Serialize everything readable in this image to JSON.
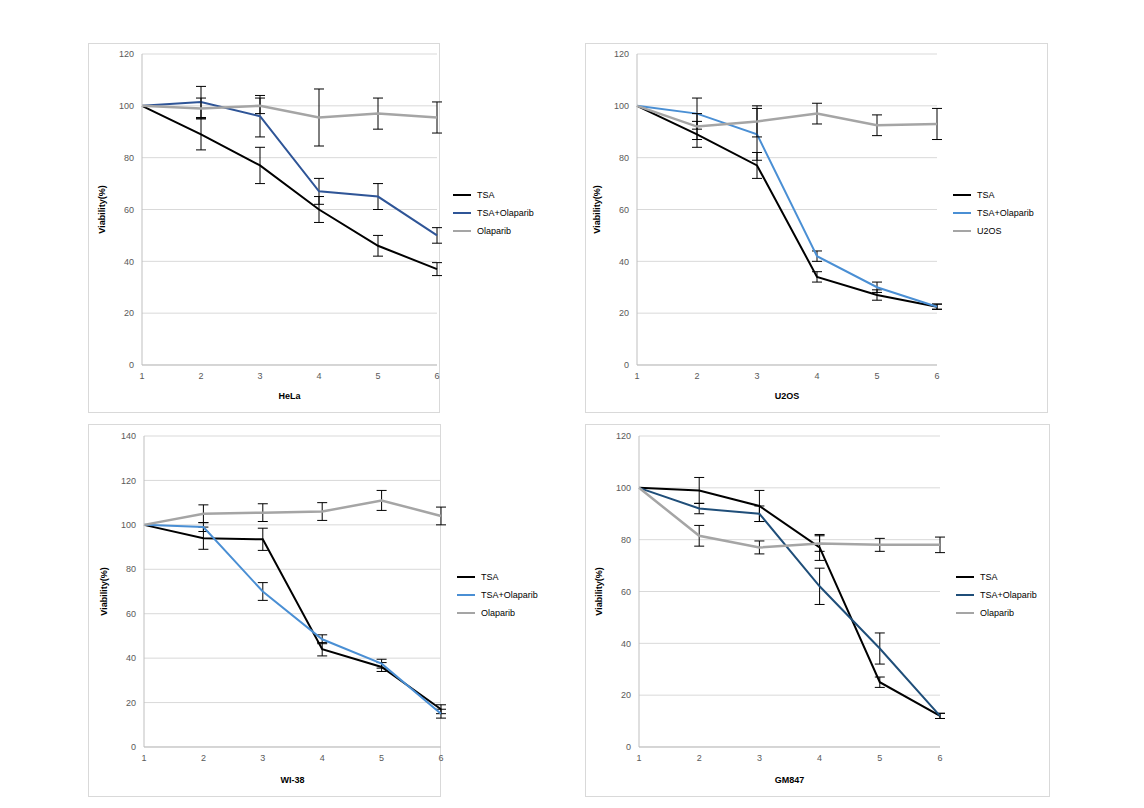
{
  "chart_data": [
    {
      "type": "line",
      "x_label": "HeLa",
      "y_label": "Viability(%)",
      "categories": [
        "1",
        "2",
        "3",
        "4",
        "5",
        "6"
      ],
      "ylim": [
        0,
        120
      ],
      "yticks": [
        0,
        20,
        40,
        60,
        80,
        100,
        120
      ],
      "grid": true,
      "legend": "right",
      "series": [
        {
          "name": "TSA",
          "color": "#000000",
          "values": [
            100,
            89,
            77,
            60,
            46,
            37
          ],
          "errors": [
            0,
            6,
            7,
            5,
            4,
            2.5
          ]
        },
        {
          "name": "TSA+Olaparib",
          "color": "#2f5597",
          "values": [
            100,
            101.5,
            96,
            67,
            65,
            50
          ],
          "errors": [
            0,
            6,
            8,
            5,
            5,
            3
          ]
        },
        {
          "name": "Olaparib",
          "color": "#a5a5a5",
          "values": [
            100,
            99,
            100,
            95.5,
            97,
            95.5
          ],
          "errors": [
            0,
            4,
            3,
            11,
            6,
            6
          ]
        }
      ]
    },
    {
      "type": "line",
      "x_label": "U2OS",
      "y_label": "Viability(%)",
      "categories": [
        "1",
        "2",
        "3",
        "4",
        "5",
        "6"
      ],
      "ylim": [
        0,
        120
      ],
      "yticks": [
        0,
        20,
        40,
        60,
        80,
        100,
        120
      ],
      "grid": true,
      "legend": "right",
      "series": [
        {
          "name": "TSA",
          "color": "#000000",
          "values": [
            100,
            89,
            77,
            34,
            27,
            22.5
          ],
          "errors": [
            0,
            5,
            5,
            2,
            2,
            1
          ]
        },
        {
          "name": "TSA+Olaparib",
          "color": "#4a8fd4",
          "values": [
            100,
            97,
            89,
            42,
            30,
            22.5
          ],
          "errors": [
            0,
            6,
            10,
            2,
            2,
            1
          ]
        },
        {
          "name": "U2OS",
          "color": "#a5a5a5",
          "values": [
            100,
            92,
            94,
            97,
            92.5,
            93
          ],
          "errors": [
            0,
            5,
            6,
            4,
            4,
            6
          ]
        }
      ]
    },
    {
      "type": "line",
      "x_label": "WI-38",
      "y_label": "Viability(%)",
      "categories": [
        "1",
        "2",
        "3",
        "4",
        "5",
        "6"
      ],
      "ylim": [
        0,
        140
      ],
      "yticks": [
        0,
        20,
        40,
        60,
        80,
        100,
        120,
        140
      ],
      "grid": true,
      "legend": "right",
      "series": [
        {
          "name": "TSA",
          "color": "#000000",
          "values": [
            100,
            94,
            93.5,
            44,
            36,
            17
          ],
          "errors": [
            0,
            5,
            5,
            3,
            2,
            2
          ]
        },
        {
          "name": "TSA+Olaparib",
          "color": "#4a8fd4",
          "values": [
            100,
            99,
            70,
            48.5,
            37.5,
            15
          ],
          "errors": [
            0,
            2,
            4,
            2,
            2,
            2
          ]
        },
        {
          "name": "Olaparib",
          "color": "#a5a5a5",
          "values": [
            100,
            105,
            105.5,
            106,
            111,
            104
          ],
          "errors": [
            0,
            4,
            4,
            4,
            4.5,
            4
          ]
        }
      ]
    },
    {
      "type": "line",
      "x_label": "GM847",
      "y_label": "Viability(%)",
      "categories": [
        "1",
        "2",
        "3",
        "4",
        "5",
        "6"
      ],
      "ylim": [
        0,
        120
      ],
      "yticks": [
        0,
        20,
        40,
        60,
        80,
        100,
        120
      ],
      "grid": true,
      "legend": "right",
      "series": [
        {
          "name": "TSA",
          "color": "#000000",
          "values": [
            100,
            99,
            93,
            77,
            25,
            12
          ],
          "errors": [
            0,
            5,
            6,
            5,
            2,
            1
          ]
        },
        {
          "name": "TSA+Olaparib",
          "color": "#1f4e79",
          "values": [
            100,
            92,
            90,
            62,
            38,
            12
          ],
          "errors": [
            0,
            2,
            3,
            7,
            6,
            1
          ]
        },
        {
          "name": "Olaparib",
          "color": "#a5a5a5",
          "values": [
            100,
            81.5,
            77,
            78.5,
            78,
            78
          ],
          "errors": [
            0,
            4,
            2.5,
            3,
            2.5,
            3
          ]
        }
      ]
    }
  ]
}
